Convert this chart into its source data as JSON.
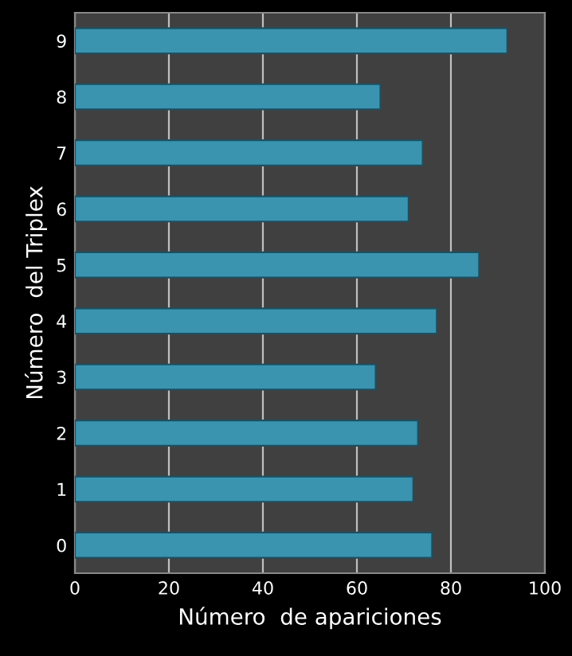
{
  "chart_data": {
    "type": "bar",
    "orientation": "horizontal",
    "xlabel": "Número  de apariciones",
    "ylabel": "Número  del Triplex",
    "categories": [
      "9",
      "8",
      "7",
      "6",
      "5",
      "4",
      "3",
      "2",
      "1",
      "0"
    ],
    "values": [
      92,
      65,
      74,
      71,
      86,
      77,
      64,
      73,
      72,
      76
    ],
    "color": "#3a94b0",
    "xlim": [
      0,
      100
    ],
    "xticks": [
      0,
      20,
      40,
      60,
      80,
      100
    ],
    "grid": "x",
    "legend": false
  }
}
